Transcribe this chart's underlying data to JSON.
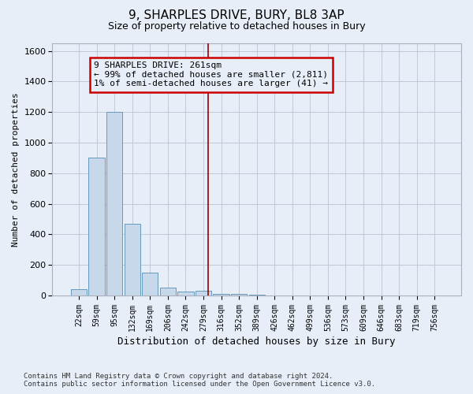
{
  "title1": "9, SHARPLES DRIVE, BURY, BL8 3AP",
  "title2": "Size of property relative to detached houses in Bury",
  "xlabel": "Distribution of detached houses by size in Bury",
  "ylabel": "Number of detached properties",
  "bar_labels": [
    "22sqm",
    "59sqm",
    "95sqm",
    "132sqm",
    "169sqm",
    "206sqm",
    "242sqm",
    "279sqm",
    "316sqm",
    "352sqm",
    "389sqm",
    "426sqm",
    "462sqm",
    "499sqm",
    "536sqm",
    "573sqm",
    "609sqm",
    "646sqm",
    "683sqm",
    "719sqm",
    "756sqm"
  ],
  "bar_values": [
    40,
    900,
    1200,
    470,
    150,
    50,
    25,
    30,
    12,
    10,
    4,
    2,
    1,
    1,
    0,
    0,
    0,
    0,
    0,
    0,
    0
  ],
  "bar_color": "#c8d8eb",
  "bar_edge_color": "#6699bb",
  "vline_x": 7.27,
  "vline_color": "#990000",
  "annotation_box_text": "9 SHARPLES DRIVE: 261sqm\n← 99% of detached houses are smaller (2,811)\n1% of semi-detached houses are larger (41) →",
  "ylim": [
    0,
    1650
  ],
  "yticks": [
    0,
    200,
    400,
    600,
    800,
    1000,
    1200,
    1400,
    1600
  ],
  "grid_color": "#c0c8d8",
  "footer": "Contains HM Land Registry data © Crown copyright and database right 2024.\nContains public sector information licensed under the Open Government Licence v3.0.",
  "bg_color": "#e8eef8",
  "title_fontsize": 11,
  "subtitle_fontsize": 9,
  "ann_fontsize": 8
}
